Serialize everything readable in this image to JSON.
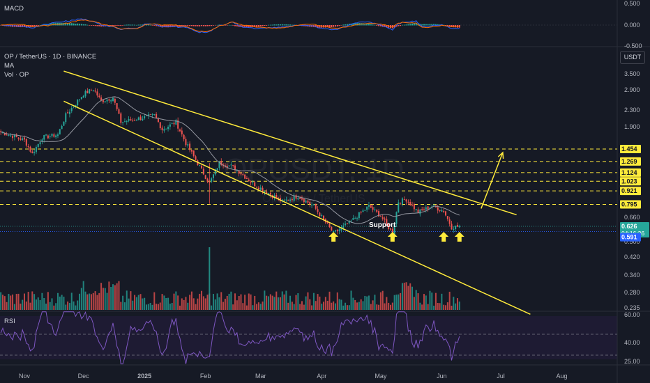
{
  "header": {
    "symbol_line": "OP / TetherUS · 1D · BINANCE",
    "indicator_ma": "MA",
    "indicator_vol": "Vol · OP",
    "macd_label": "MACD",
    "rsi_label": "RSI",
    "currency_button": "USDT"
  },
  "watermark": {
    "symbol": "OPUSDT, 1D",
    "name": "Optimism / TetherUS"
  },
  "annotation": {
    "support_label": "Support",
    "arrow_color": "#ffeb3b"
  },
  "colors": {
    "up": "#26a69a",
    "down": "#ef5350",
    "channel": "#ffeb3b",
    "ma": "#9598a1",
    "rsi": "#7e57c2",
    "macd": "#2962ff",
    "signal": "#ff6d00"
  },
  "price_tags": {
    "last": "0.626",
    "countdown": "04:16:36",
    "low": "0.591"
  },
  "chart_data": [
    {
      "type": "candlestick",
      "title": "OP / TetherUS · 1D · BINANCE",
      "y_scale": "log",
      "y_ticks": [
        "3.500",
        "2.900",
        "2.300",
        "1.900",
        "1.454",
        "1.269",
        "1.124",
        "1.023",
        "0.921",
        "0.795",
        "0.660",
        "0.500",
        "0.420",
        "0.340",
        "0.280",
        "0.235"
      ],
      "x_ticks": [
        "Nov",
        "Dec",
        "2025",
        "Feb",
        "Mar",
        "Apr",
        "May",
        "Jun",
        "Jul",
        "Aug"
      ],
      "horizontal_levels": [
        1.454,
        1.269,
        1.124,
        1.023,
        0.921,
        0.795
      ],
      "price_path": [
        [
          "2024-10-20",
          1.75
        ],
        [
          "2024-11-01",
          1.6
        ],
        [
          "2024-11-05",
          1.38
        ],
        [
          "2024-11-10",
          1.65
        ],
        [
          "2024-11-18",
          1.7
        ],
        [
          "2024-11-22",
          2.1
        ],
        [
          "2024-12-01",
          2.65
        ],
        [
          "2024-12-06",
          2.8
        ],
        [
          "2024-12-10",
          2.45
        ],
        [
          "2024-12-16",
          2.55
        ],
        [
          "2024-12-20",
          1.95
        ],
        [
          "2024-12-26",
          2.0
        ],
        [
          "2025-01-06",
          2.1
        ],
        [
          "2025-01-10",
          1.8
        ],
        [
          "2025-01-17",
          1.95
        ],
        [
          "2025-01-22",
          1.55
        ],
        [
          "2025-02-03",
          1.0
        ],
        [
          "2025-02-08",
          1.25
        ],
        [
          "2025-02-15",
          1.2
        ],
        [
          "2025-02-25",
          1.0
        ],
        [
          "2025-03-05",
          0.9
        ],
        [
          "2025-03-12",
          0.82
        ],
        [
          "2025-03-20",
          0.87
        ],
        [
          "2025-03-28",
          0.78
        ],
        [
          "2025-04-07",
          0.58
        ],
        [
          "2025-04-15",
          0.65
        ],
        [
          "2025-04-25",
          0.78
        ],
        [
          "2025-05-01",
          0.7
        ],
        [
          "2025-05-07",
          0.58
        ],
        [
          "2025-05-10",
          0.82
        ],
        [
          "2025-05-14",
          0.84
        ],
        [
          "2025-05-20",
          0.73
        ],
        [
          "2025-05-27",
          0.78
        ],
        [
          "2025-06-02",
          0.74
        ],
        [
          "2025-06-06",
          0.62
        ],
        [
          "2025-06-10",
          0.626
        ]
      ],
      "support_arrows": [
        "2025-04-07",
        "2025-05-07",
        "2025-06-02",
        "2025-06-10"
      ],
      "channel_upper": [
        [
          "2024-11-21",
          3.4
        ],
        [
          "2025-07-09",
          0.71
        ]
      ],
      "channel_lower": [
        [
          "2024-11-21",
          2.45
        ],
        [
          "2025-07-16",
          0.24
        ]
      ],
      "projection_arrow": [
        [
          "2025-06-21",
          0.76
        ],
        [
          "2025-07-02",
          1.4
        ]
      ]
    },
    {
      "type": "bar",
      "title": "Vol · OP",
      "series": [
        {
          "name": "Volume"
        }
      ]
    },
    {
      "type": "line",
      "title": "MACD",
      "y_ticks": [
        "0.500",
        "0.000",
        "-0.500"
      ],
      "series": [
        {
          "name": "MACD"
        },
        {
          "name": "Signal"
        }
      ]
    },
    {
      "type": "line",
      "title": "RSI",
      "y_ticks": [
        "60.00",
        "40.00",
        "25.00"
      ],
      "series": [
        {
          "name": "RSI"
        }
      ]
    }
  ]
}
